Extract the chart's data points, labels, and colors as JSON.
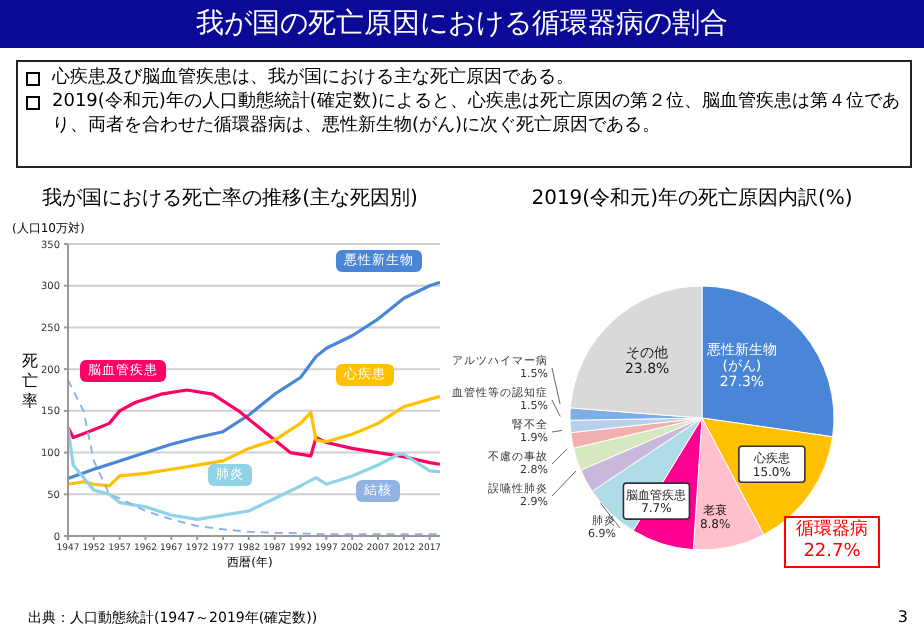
{
  "chart_data": [
    {
      "type": "other",
      "title": "我が国の死亡原因における循環器病の割合",
      "annotations": [
        "心疾患及び脳血管疾患は、我が国における主な死亡原因である。",
        "2019(令和元)年の人口動態統計(確定数)によると、心疾患は死亡原因の第２位、脳血管疾患は第４位であり、両者を合わせた循環器病は、悪性新生物(がん)に次ぐ死亡原因である。",
        "3"
      ]
    },
    {
      "type": "line",
      "title": "我が国における死亡率の推移(主な死因別)",
      "xlabel": "西暦(年)",
      "ylabel": "死亡率",
      "annotations": [
        "(人口10万対)",
        "出典：人口動態統計(1947～2019年(確定数))"
      ],
      "xlim": [
        1947,
        2019
      ],
      "xticks": [
        1947,
        1952,
        1957,
        1962,
        1967,
        1972,
        1977,
        1982,
        1987,
        1992,
        1997,
        2002,
        2007,
        2012,
        2017
      ],
      "ylim": [
        0,
        350
      ],
      "yticks": [
        0,
        50,
        100,
        150,
        200,
        250,
        300,
        350
      ],
      "grid": "y",
      "marker": "none",
      "series": [
        {
          "name": "悪性新生物",
          "color": "#4a86d8",
          "x": [
            1947,
            1952,
            1957,
            1962,
            1967,
            1972,
            1977,
            1982,
            1987,
            1992,
            1995,
            1997,
            2002,
            2007,
            2012,
            2017,
            2019
          ],
          "values": [
            69,
            80,
            90,
            100,
            110,
            118,
            125,
            145,
            170,
            190,
            215,
            225,
            240,
            260,
            285,
            300,
            304
          ]
        },
        {
          "name": "脳血管疾患",
          "color": "#ff0066",
          "x": [
            1947,
            1948,
            1951,
            1955,
            1957,
            1960,
            1965,
            1970,
            1975,
            1980,
            1985,
            1990,
            1994,
            1995,
            1997,
            2002,
            2007,
            2012,
            2017,
            2019
          ],
          "values": [
            130,
            118,
            125,
            135,
            150,
            160,
            170,
            175,
            170,
            150,
            125,
            100,
            96,
            118,
            112,
            105,
            100,
            95,
            88,
            86
          ]
        },
        {
          "name": "心疾患",
          "color": "#ffc000",
          "x": [
            1947,
            1950,
            1952,
            1955,
            1957,
            1962,
            1967,
            1972,
            1977,
            1982,
            1987,
            1992,
            1994,
            1995,
            1997,
            2002,
            2007,
            2012,
            2017,
            2019
          ],
          "values": [
            62,
            65,
            62,
            60,
            72,
            75,
            80,
            85,
            90,
            105,
            115,
            135,
            148,
            115,
            113,
            122,
            135,
            155,
            164,
            167
          ]
        },
        {
          "name": "肺炎",
          "color": "#8fd3e6",
          "x": [
            1947,
            1948,
            1952,
            1955,
            1957,
            1962,
            1967,
            1972,
            1977,
            1982,
            1987,
            1992,
            1995,
            1997,
            2002,
            2007,
            2011,
            2012,
            2017,
            2019
          ],
          "values": [
            130,
            85,
            55,
            50,
            40,
            35,
            25,
            20,
            25,
            30,
            45,
            60,
            70,
            62,
            72,
            85,
            98,
            98,
            78,
            77
          ]
        },
        {
          "name": "結核",
          "color": "#8fb4e3",
          "line_style": "dashed",
          "x": [
            1947,
            1950,
            1952,
            1955,
            1957,
            1962,
            1967,
            1972,
            1977,
            1982,
            1987,
            1997,
            2007,
            2019
          ],
          "values": [
            187,
            150,
            90,
            50,
            45,
            30,
            20,
            12,
            8,
            5,
            4,
            2,
            2,
            2
          ]
        }
      ]
    },
    {
      "type": "pie",
      "title": "2019(令和元)年の死亡原因内訳(%)",
      "annotations": [
        "循環器病 22.7%"
      ],
      "categories": [
        "悪性新生物(がん)",
        "心疾患",
        "老衰",
        "脳血管疾患",
        "肺炎",
        "誤嚥性肺炎",
        "不慮の事故",
        "腎不全",
        "血管性等の認知症",
        "アルツハイマー病",
        "その他"
      ],
      "values": [
        27.3,
        15.0,
        8.8,
        7.7,
        6.9,
        2.9,
        2.8,
        1.9,
        1.5,
        1.5,
        23.8
      ],
      "value_labels": [
        "27.3%",
        "15.0%",
        "8.8%",
        "7.7%",
        "6.9%",
        "2.9%",
        "2.8%",
        "1.9%",
        "1.5%",
        "1.5%",
        "23.8%"
      ],
      "colors": [
        "#4a86d8",
        "#ffc000",
        "#ffc0cb",
        "#ff0090",
        "#b0dce8",
        "#c9b8dc",
        "#d6e8c0",
        "#f0b0b0",
        "#b8d0ec",
        "#7eaee6",
        "#d9d9d9"
      ]
    }
  ]
}
